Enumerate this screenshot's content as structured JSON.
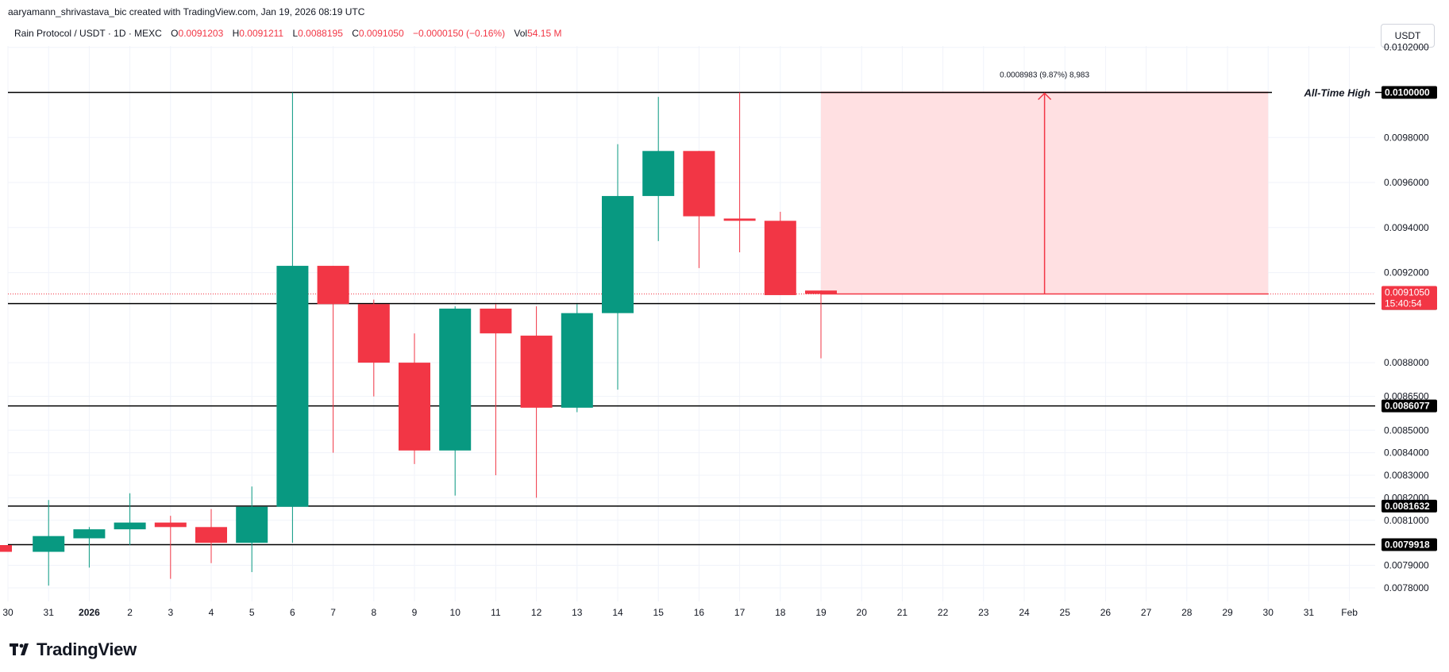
{
  "header": {
    "attribution": "aaryamann_shrivastava_bic created with TradingView.com, Jan 19, 2026 08:19 UTC"
  },
  "legend": {
    "symbol": "Rain Protocol / USDT · 1D · MEXC",
    "o_label": "O",
    "o_value": "0.0091203",
    "h_label": "H",
    "h_value": "0.0091211",
    "l_label": "L",
    "l_value": "0.0088195",
    "c_label": "C",
    "c_value": "0.0091050",
    "change": "−0.0000150 (−0.16%)",
    "vol_label": "Vol",
    "vol_value": "54.15 M"
  },
  "currency": "USDT",
  "logo_text": "TradingView",
  "colors": {
    "up": "#089981",
    "down": "#f23645",
    "level": "#000000",
    "zone_fill": "#ffe0e2",
    "zone_line": "#f23645"
  },
  "chart_data": {
    "type": "candlestick",
    "x_ticks": [
      "30",
      "31",
      "2026",
      "2",
      "3",
      "4",
      "5",
      "6",
      "7",
      "8",
      "9",
      "10",
      "11",
      "12",
      "13",
      "14",
      "15",
      "16",
      "17",
      "18",
      "19",
      "20",
      "21",
      "22",
      "23",
      "24",
      "25",
      "26",
      "27",
      "28",
      "29",
      "30",
      "31",
      "Feb"
    ],
    "candles": [
      {
        "day": "30",
        "o": 0.00799,
        "h": 0.00799,
        "l": 0.00796,
        "c": 0.00796
      },
      {
        "day": "31",
        "o": 0.00796,
        "h": 0.00819,
        "l": 0.00781,
        "c": 0.00803
      },
      {
        "day": "2026",
        "o": 0.00802,
        "h": 0.00807,
        "l": 0.00789,
        "c": 0.00806
      },
      {
        "day": "2",
        "o": 0.00806,
        "h": 0.00822,
        "l": 0.00799,
        "c": 0.00809
      },
      {
        "day": "3",
        "o": 0.00809,
        "h": 0.00812,
        "l": 0.00784,
        "c": 0.00807
      },
      {
        "day": "4",
        "o": 0.00807,
        "h": 0.00815,
        "l": 0.00791,
        "c": 0.008
      },
      {
        "day": "5",
        "o": 0.008,
        "h": 0.00825,
        "l": 0.00787,
        "c": 0.00816
      },
      {
        "day": "6",
        "o": 0.00816,
        "h": 0.01,
        "l": 0.008,
        "c": 0.00923
      },
      {
        "day": "7",
        "o": 0.00923,
        "h": 0.00923,
        "l": 0.0084,
        "c": 0.00906
      },
      {
        "day": "8",
        "o": 0.00906,
        "h": 0.00908,
        "l": 0.00865,
        "c": 0.0088
      },
      {
        "day": "9",
        "o": 0.0088,
        "h": 0.00893,
        "l": 0.00835,
        "c": 0.00841
      },
      {
        "day": "10",
        "o": 0.00841,
        "h": 0.00905,
        "l": 0.00821,
        "c": 0.00904
      },
      {
        "day": "11",
        "o": 0.00904,
        "h": 0.00906,
        "l": 0.0083,
        "c": 0.00893
      },
      {
        "day": "12",
        "o": 0.00892,
        "h": 0.00905,
        "l": 0.0082,
        "c": 0.0086
      },
      {
        "day": "13",
        "o": 0.0086,
        "h": 0.00906,
        "l": 0.00858,
        "c": 0.00902
      },
      {
        "day": "14",
        "o": 0.00902,
        "h": 0.00977,
        "l": 0.00868,
        "c": 0.00954
      },
      {
        "day": "15",
        "o": 0.00954,
        "h": 0.00998,
        "l": 0.00934,
        "c": 0.00974
      },
      {
        "day": "16",
        "o": 0.00974,
        "h": 0.00974,
        "l": 0.00922,
        "c": 0.00945
      },
      {
        "day": "17",
        "o": 0.00944,
        "h": 0.01,
        "l": 0.00929,
        "c": 0.00943
      },
      {
        "day": "18",
        "o": 0.00943,
        "h": 0.00947,
        "l": 0.0091,
        "c": 0.0091
      },
      {
        "day": "19",
        "o": 0.0091203,
        "h": 0.0091211,
        "l": 0.0088195,
        "c": 0.009105
      }
    ],
    "y_ticks": [
      "0.0102000",
      "0.0098000",
      "0.0096000",
      "0.0094000",
      "0.0092000",
      "0.0088000",
      "0.0086500",
      "0.0085000",
      "0.0084000",
      "0.0083000",
      "0.0082000",
      "0.0081000",
      "0.0079000",
      "0.0078000"
    ],
    "levels": [
      {
        "value": 0.01,
        "label": "0.0100000",
        "annotation": "All-Time High"
      },
      {
        "value": 0.0090626,
        "label": "0.0090626"
      },
      {
        "value": 0.0086077,
        "label": "0.0086077"
      },
      {
        "value": 0.0081632,
        "label": "0.0081632"
      },
      {
        "value": 0.0079918,
        "label": "0.0079918"
      }
    ],
    "current_price": {
      "label": "0.0091050",
      "countdown": "15:40:54"
    },
    "measure": {
      "from_day": "19",
      "to_day": "30",
      "low": 0.009105,
      "high": 0.01,
      "label": "0.0008983 (9.87%) 8,983"
    }
  }
}
